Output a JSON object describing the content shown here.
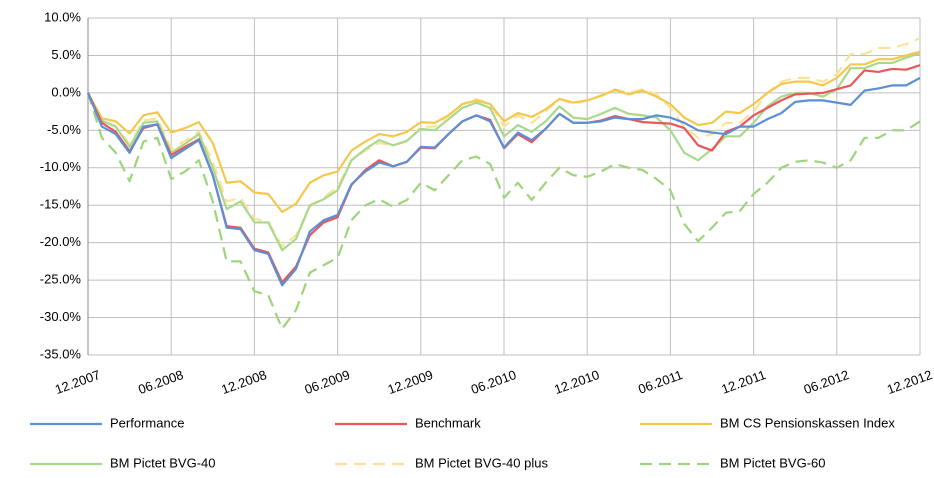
{
  "chart_data": {
    "type": "line",
    "categories": [
      "12.2007",
      null,
      null,
      null,
      null,
      null,
      "06.2008",
      null,
      null,
      null,
      null,
      null,
      "12.2008",
      null,
      null,
      null,
      null,
      null,
      "06.2009",
      null,
      null,
      null,
      null,
      null,
      "12.2009",
      null,
      null,
      null,
      null,
      null,
      "06.2010",
      null,
      null,
      null,
      null,
      null,
      "12.2010",
      null,
      null,
      null,
      null,
      null,
      "06.2011",
      null,
      null,
      null,
      null,
      null,
      "12.2011",
      null,
      null,
      null,
      null,
      null,
      "06.2012",
      null,
      null,
      null,
      null,
      null,
      "12.2012"
    ],
    "series": [
      {
        "name": "Performance",
        "color": "#5b8fd6",
        "dashed": false,
        "values": [
          0,
          -4.5,
          -5.5,
          -8,
          -4.5,
          -4.2,
          -8.7,
          -7.5,
          -6.3,
          -11,
          -18,
          -18.2,
          -21,
          -21.5,
          -25.7,
          -23.5,
          -18.5,
          -17,
          -16.3,
          -12.2,
          -10.5,
          -9.3,
          -9.8,
          -9.2,
          -7.2,
          -7.3,
          -5.5,
          -3.8,
          -3,
          -3.8,
          -7.3,
          -5.3,
          -6.3,
          -4.8,
          -2.8,
          -4,
          -4,
          -3.8,
          -3.3,
          -3.5,
          -3.5,
          -3,
          -3.3,
          -4,
          -5,
          -5.3,
          -5.5,
          -4.5,
          -4.5,
          -3.5,
          -2.7,
          -1.2,
          -1,
          -1,
          -1.3,
          -1.6,
          0.3,
          0.6,
          1,
          1,
          2
        ]
      },
      {
        "name": "Benchmark",
        "color": "#e8575a",
        "dashed": false,
        "values": [
          0,
          -4,
          -5.2,
          -7.8,
          -4.7,
          -4.2,
          -8.3,
          -7.2,
          -6.2,
          -11,
          -17.8,
          -18,
          -20.8,
          -21.3,
          -25.3,
          -23.2,
          -19,
          -17.3,
          -16.6,
          -12.3,
          -10.3,
          -9,
          -9.8,
          -9.2,
          -7.3,
          -7.4,
          -5.5,
          -3.8,
          -3,
          -3.6,
          -7.4,
          -5.5,
          -6.6,
          -4.8,
          -2.8,
          -4,
          -4,
          -3.7,
          -3.1,
          -3.5,
          -3.9,
          -4,
          -4.1,
          -4.7,
          -7,
          -7.7,
          -5.2,
          -4.5,
          -3,
          -2,
          -1,
          -0.2,
          -0.1,
          0,
          0.5,
          1,
          3,
          2.8,
          3.2,
          3.1,
          3.7
        ]
      },
      {
        "name": "BM CS Pensionskassen Index",
        "color": "#f5c84c",
        "dashed": false,
        "values": [
          0,
          -3.4,
          -3.8,
          -5.4,
          -3,
          -2.6,
          -5.3,
          -4.7,
          -3.9,
          -6.7,
          -12,
          -11.8,
          -13.3,
          -13.5,
          -15.9,
          -14.8,
          -12,
          -11,
          -10.5,
          -7.7,
          -6.5,
          -5.5,
          -5.8,
          -5.2,
          -3.9,
          -4,
          -3,
          -1.5,
          -1,
          -1.5,
          -3.8,
          -2.7,
          -3.2,
          -2.2,
          -0.8,
          -1.3,
          -1,
          -0.4,
          0.4,
          -0.2,
          0.3,
          -0.5,
          -1.5,
          -3.3,
          -4.3,
          -4,
          -2.5,
          -2.7,
          -1.5,
          0,
          1.2,
          1.5,
          1.5,
          1,
          2,
          3.8,
          3.8,
          4.5,
          4.5,
          5,
          5.5
        ]
      },
      {
        "name": "BM Pictet BVG-40",
        "color": "#a9d98a",
        "dashed": false,
        "values": [
          0,
          -3.7,
          -4.5,
          -7.2,
          -4,
          -3.8,
          -8,
          -6.8,
          -5.5,
          -10,
          -15.5,
          -14.5,
          -17.3,
          -17.3,
          -21,
          -19.5,
          -15,
          -14.2,
          -13,
          -9,
          -7.5,
          -6.3,
          -7,
          -6.4,
          -4.8,
          -5,
          -3.5,
          -2,
          -1.3,
          -2,
          -5.8,
          -4.3,
          -5.2,
          -3.8,
          -1.8,
          -3.3,
          -3.5,
          -2.8,
          -2,
          -2.8,
          -3,
          -3.3,
          -5,
          -8,
          -9,
          -7.5,
          -5.8,
          -5.8,
          -4,
          -1.8,
          -0.5,
          0,
          0,
          -0.5,
          0.5,
          3.3,
          3.3,
          4,
          4,
          4.7,
          5.3
        ]
      },
      {
        "name": "BM Pictet BVG-40 plus",
        "color": "#fbe29a",
        "dashed": true,
        "values": [
          0,
          -3.5,
          -4.5,
          -6.8,
          -3.7,
          -3.4,
          -7.5,
          -6.4,
          -5.2,
          -9.2,
          -14.5,
          -14,
          -16.8,
          -17.2,
          -20.5,
          -19,
          -15.2,
          -14,
          -12.5,
          -9,
          -7.7,
          -6.7,
          -7,
          -6.5,
          -4.5,
          -4.5,
          -3,
          -1.5,
          -0.8,
          -1.5,
          -4.5,
          -3,
          -4,
          -2.5,
          -0.8,
          -1.5,
          -1,
          -0.3,
          0.5,
          0,
          0.5,
          -0.2,
          -2,
          -4.5,
          -6,
          -5.5,
          -4,
          -4,
          -2.5,
          0,
          1.5,
          2,
          2,
          1.5,
          2.5,
          5.2,
          5.2,
          6,
          6,
          6.5,
          7.3
        ]
      },
      {
        "name": "BM Pictet BVG-60",
        "color": "#9ed47e",
        "dashed": true,
        "values": [
          0,
          -6,
          -8,
          -11.8,
          -6.5,
          -6,
          -11.5,
          -10.5,
          -9,
          -14.5,
          -22.5,
          -22.5,
          -26.5,
          -27,
          -31.5,
          -29,
          -24,
          -23,
          -22,
          -17,
          -15,
          -14.2,
          -15.2,
          -14.3,
          -12,
          -13,
          -11,
          -9,
          -8.5,
          -9.5,
          -14,
          -12,
          -14.3,
          -12,
          -10,
          -11,
          -11.2,
          -10.5,
          -9.5,
          -10,
          -10.3,
          -11.5,
          -13,
          -17.5,
          -19.8,
          -18,
          -16,
          -15.8,
          -13.5,
          -12,
          -10,
          -9.2,
          -9,
          -9.3,
          -10,
          -9,
          -6,
          -6,
          -5,
          -5,
          -3.8
        ]
      }
    ],
    "ylim": [
      -35,
      10
    ],
    "yticks": [
      {
        "value": 10,
        "label": "10.0%"
      },
      {
        "value": 5,
        "label": "5.0%"
      },
      {
        "value": 0,
        "label": "0.0%"
      },
      {
        "value": -5,
        "label": "-5.0%"
      },
      {
        "value": -10,
        "label": "-10.0%"
      },
      {
        "value": -15,
        "label": "-15.0%"
      },
      {
        "value": -20,
        "label": "-20.0%"
      },
      {
        "value": -25,
        "label": "-25.0%"
      },
      {
        "value": -30,
        "label": "-30.0%"
      },
      {
        "value": -35,
        "label": "-35.0%"
      }
    ],
    "grid": true
  }
}
